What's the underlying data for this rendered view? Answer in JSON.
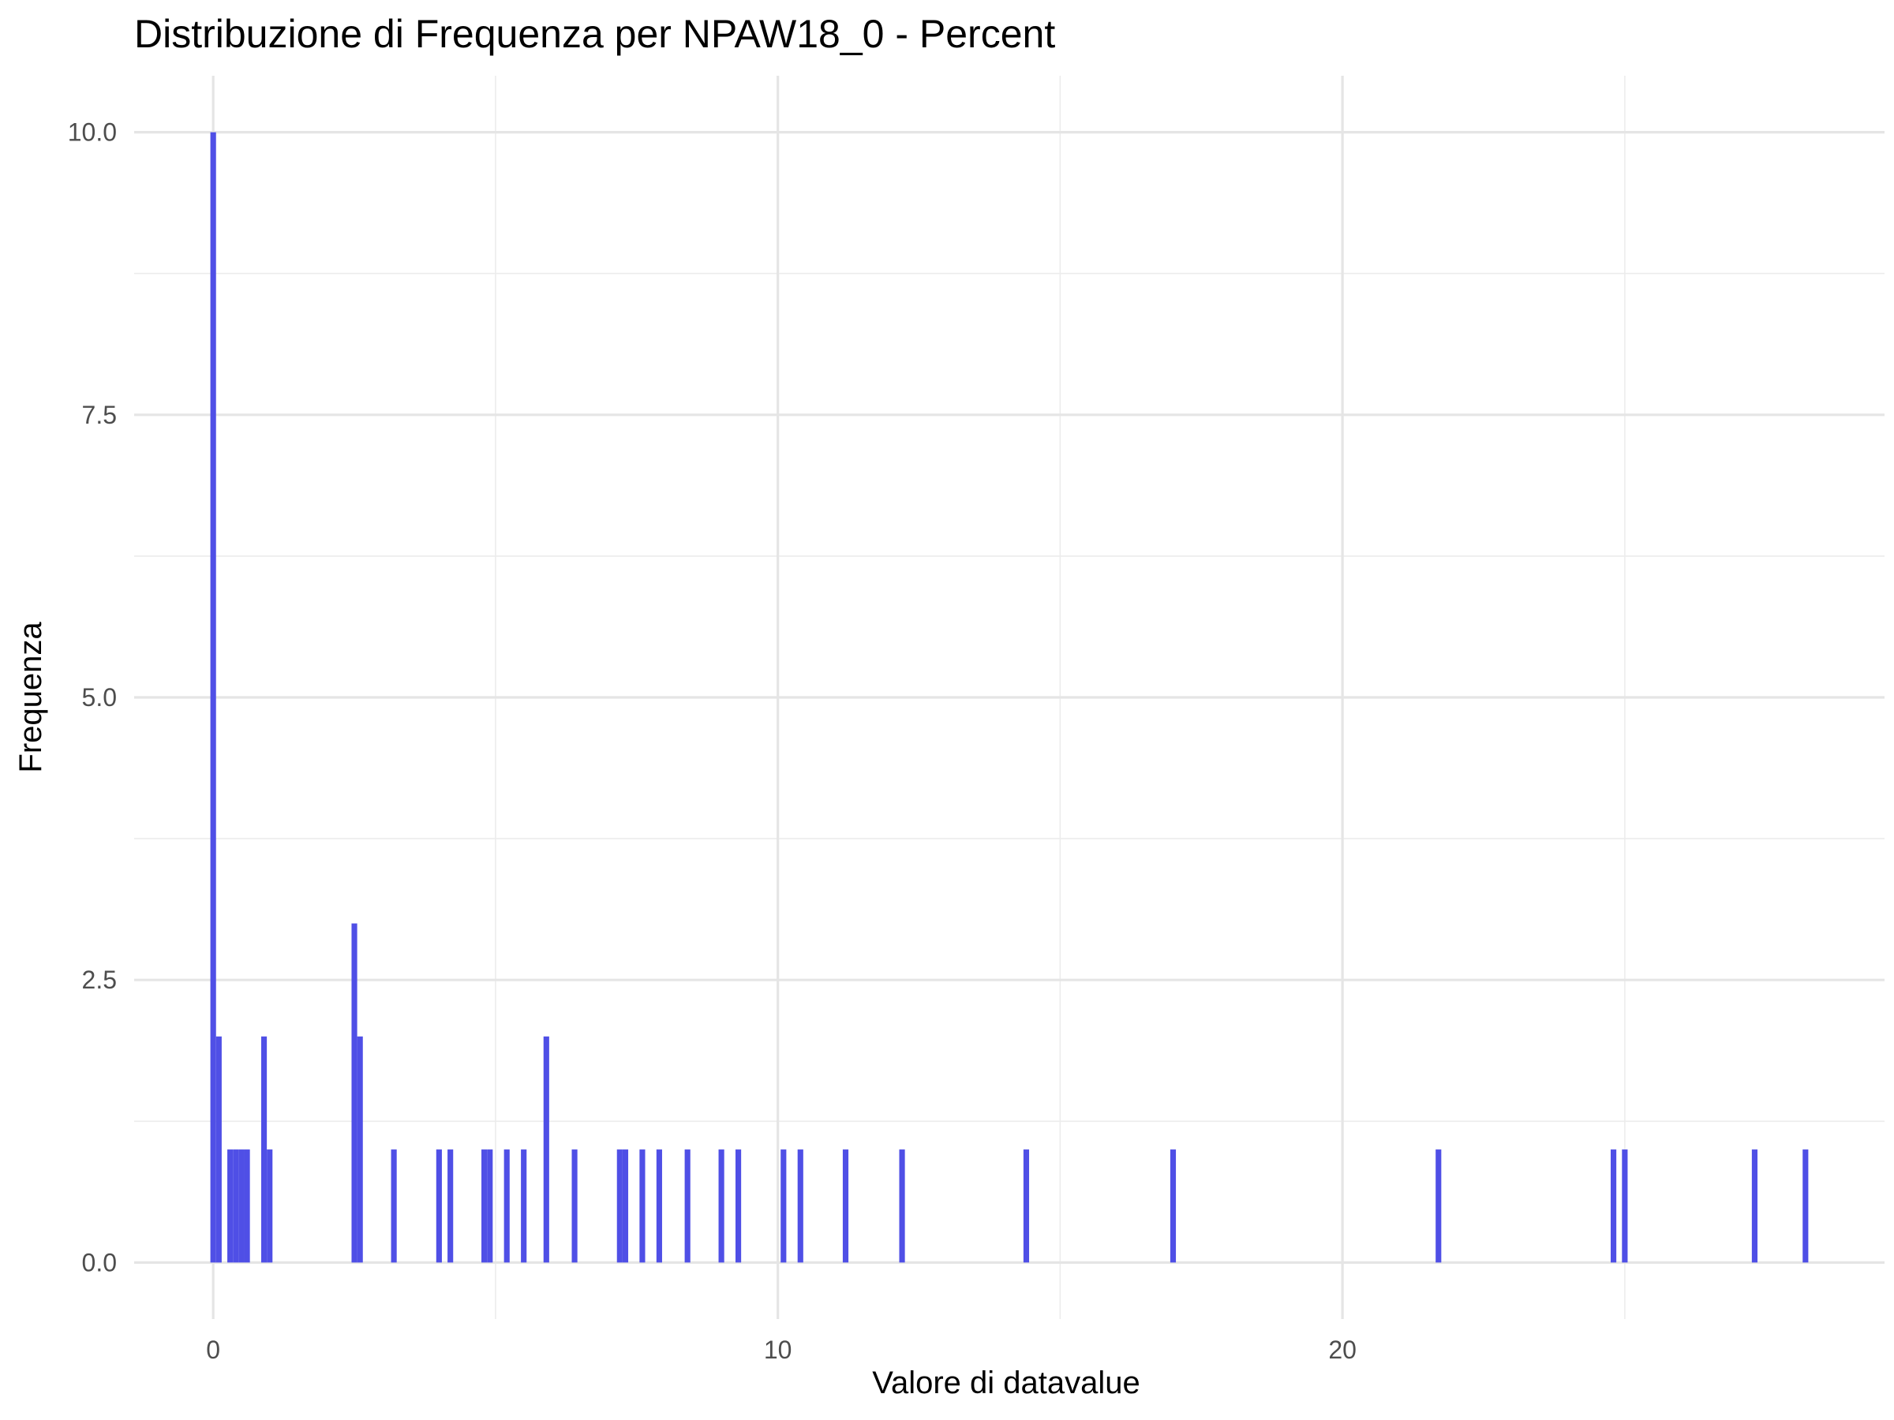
{
  "chart_data": {
    "type": "bar",
    "title": "Distribuzione di Frequenza per NPAW18_0 - Percent",
    "xlabel": "Valore di datavalue",
    "ylabel": "Frequenza",
    "xlim": [
      -1.4,
      29.6
    ],
    "ylim": [
      -0.5,
      10.5
    ],
    "x_ticks": [
      0,
      10,
      20
    ],
    "y_ticks": [
      0.0,
      2.5,
      5.0,
      7.5,
      10.0
    ],
    "x_tick_labels": [
      "0",
      "10",
      "20"
    ],
    "y_tick_labels": [
      "0.0",
      "2.5",
      "5.0",
      "7.5",
      "10.0"
    ],
    "grid": true,
    "bar_color": "#4f4fe6",
    "bars": [
      {
        "x": 0.0,
        "y": 10
      },
      {
        "x": 0.1,
        "y": 2
      },
      {
        "x": 0.3,
        "y": 1
      },
      {
        "x": 0.4,
        "y": 1
      },
      {
        "x": 0.5,
        "y": 1
      },
      {
        "x": 0.6,
        "y": 1
      },
      {
        "x": 0.9,
        "y": 2
      },
      {
        "x": 1.0,
        "y": 1
      },
      {
        "x": 2.5,
        "y": 3
      },
      {
        "x": 2.6,
        "y": 2
      },
      {
        "x": 3.2,
        "y": 1
      },
      {
        "x": 4.0,
        "y": 1
      },
      {
        "x": 4.2,
        "y": 1
      },
      {
        "x": 4.8,
        "y": 1
      },
      {
        "x": 4.9,
        "y": 1
      },
      {
        "x": 5.2,
        "y": 1
      },
      {
        "x": 5.5,
        "y": 1
      },
      {
        "x": 5.9,
        "y": 2
      },
      {
        "x": 6.4,
        "y": 1
      },
      {
        "x": 7.2,
        "y": 1
      },
      {
        "x": 7.3,
        "y": 1
      },
      {
        "x": 7.6,
        "y": 1
      },
      {
        "x": 7.9,
        "y": 1
      },
      {
        "x": 8.4,
        "y": 1
      },
      {
        "x": 9.0,
        "y": 1
      },
      {
        "x": 9.3,
        "y": 1
      },
      {
        "x": 10.1,
        "y": 1
      },
      {
        "x": 10.4,
        "y": 1
      },
      {
        "x": 11.2,
        "y": 1
      },
      {
        "x": 12.2,
        "y": 1
      },
      {
        "x": 14.4,
        "y": 1
      },
      {
        "x": 17.0,
        "y": 1
      },
      {
        "x": 21.7,
        "y": 1
      },
      {
        "x": 24.8,
        "y": 1
      },
      {
        "x": 25.0,
        "y": 1
      },
      {
        "x": 27.3,
        "y": 1
      },
      {
        "x": 28.2,
        "y": 1
      }
    ]
  }
}
